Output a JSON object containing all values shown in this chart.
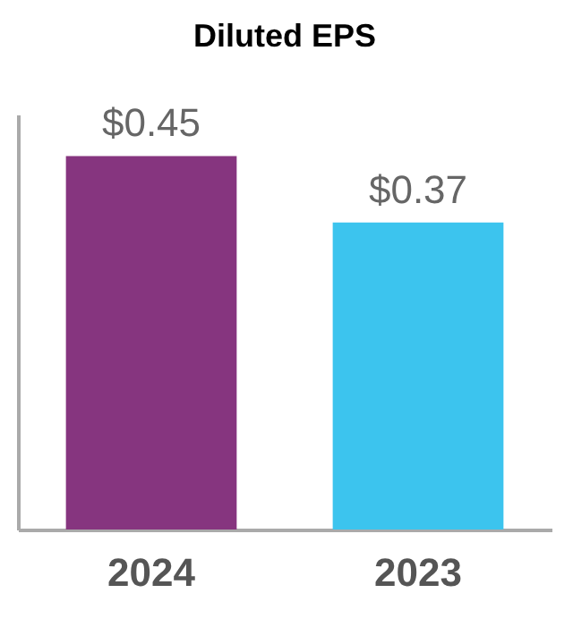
{
  "chart_data": {
    "type": "bar",
    "title": "Diluted EPS",
    "categories": [
      "2024",
      "2023"
    ],
    "values": [
      0.45,
      0.37
    ],
    "colors": [
      "#86357f",
      "#3cc4ee"
    ],
    "value_labels": [
      "$0.45",
      "$0.37"
    ],
    "ylim": [
      0,
      0.5
    ],
    "tick_labels": "x"
  }
}
